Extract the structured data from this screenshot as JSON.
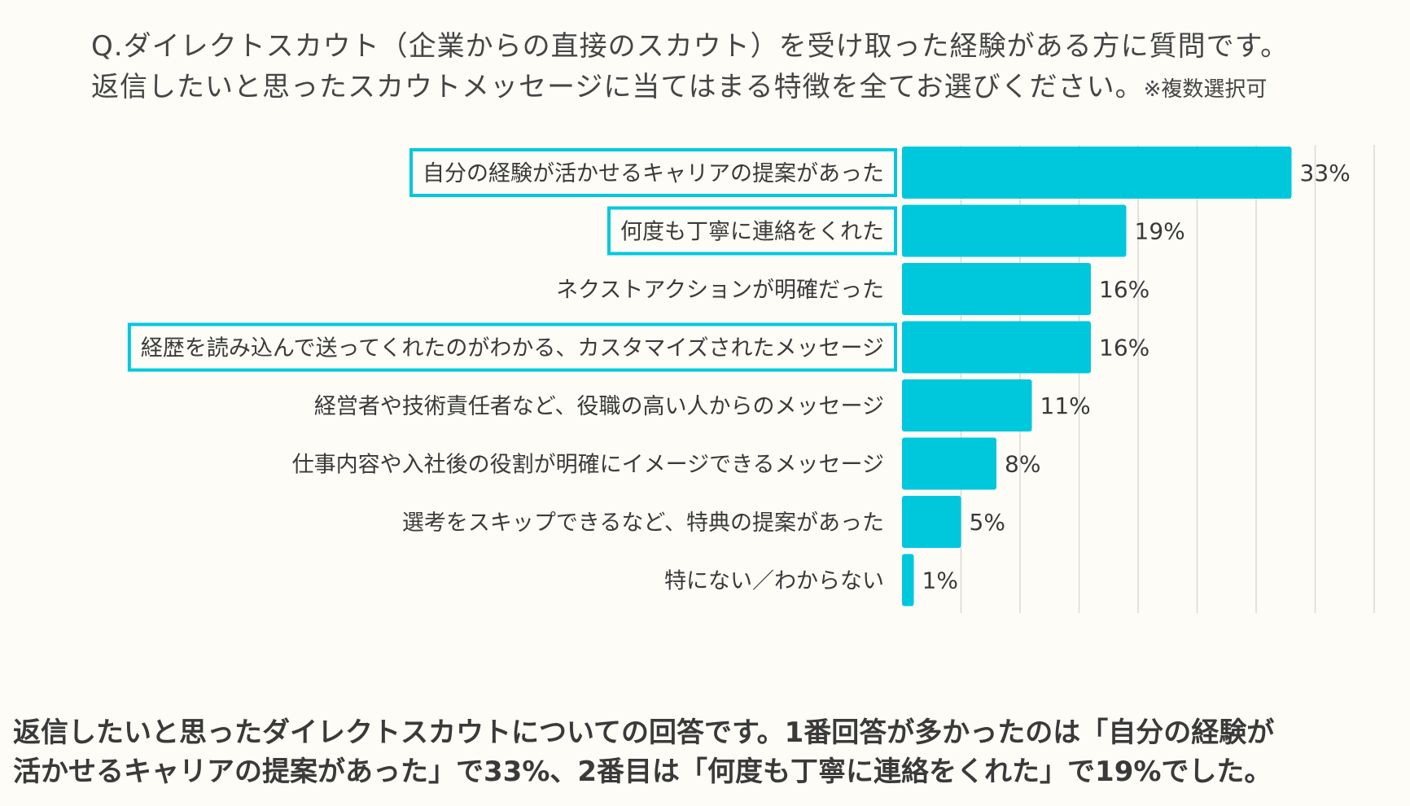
{
  "question": {
    "line1": "Q.ダイレクトスカウト（企業からの直接のスカウト）を受け取った経験がある方に質問です。",
    "line2": "返信したいと思ったスカウトメッセージに当てはまる特徴を全てお選びください。",
    "note": "※複数選択可"
  },
  "chart_data": {
    "type": "bar",
    "orientation": "horizontal",
    "title": "",
    "xlabel": "",
    "ylabel": "",
    "xlim": [
      0,
      40
    ],
    "grid": true,
    "value_suffix": "%",
    "categories": [
      "自分の経験が活かせるキャリアの提案があった",
      "何度も丁寧に連絡をくれた",
      "ネクストアクションが明確だった",
      "経歴を読み込んで送ってくれたのがわかる、カスタマイズされたメッセージ",
      "経営者や技術責任者など、役職の高い人からのメッセージ",
      "仕事内容や入社後の役割が明確にイメージできるメッセージ",
      "選考をスキップできるなど、特典の提案があった",
      "特にない／わからない"
    ],
    "values": [
      33,
      19,
      16,
      16,
      11,
      8,
      5,
      1
    ],
    "labels": [
      "33%",
      "19%",
      "16%",
      "16%",
      "11%",
      "8%",
      "5%",
      "1%"
    ],
    "highlighted": [
      true,
      true,
      false,
      true,
      false,
      false,
      false,
      false
    ],
    "colors": {
      "bar": "#00c8dc",
      "highlight_border": "#00c8dc",
      "grid": "#d9d9d9",
      "label_text": "#3a3a3a"
    }
  },
  "summary": {
    "line1": "返信したいと思ったダイレクトスカウトについての回答です。1番回答が多かったのは「自分の経験が",
    "line2": "活かせるキャリアの提案があった」で33%、2番目は「何度も丁寧に連絡をくれた」で19%でした。"
  }
}
